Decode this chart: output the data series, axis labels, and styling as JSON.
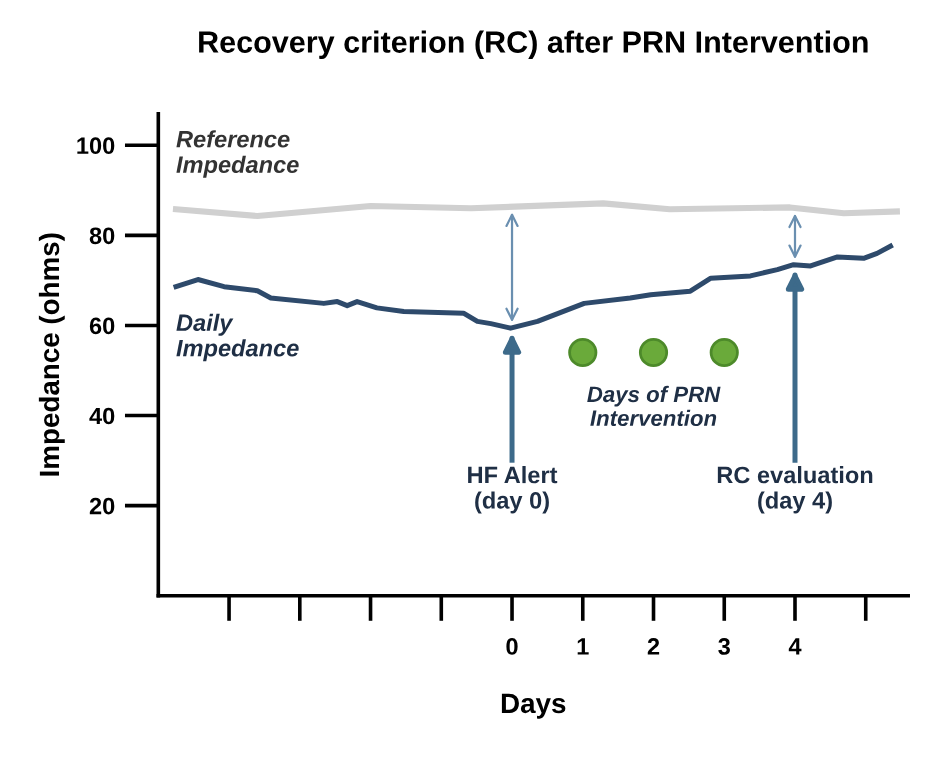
{
  "chart_data": {
    "type": "line",
    "title": "Recovery criterion (RC) after PRN Intervention",
    "xlabel": "Days",
    "ylabel": "Impedance (ohms)",
    "xlim": [
      -5,
      5.6
    ],
    "ylim": [
      0,
      107
    ],
    "xticks": [
      {
        "value": -4,
        "label": null
      },
      {
        "value": -3,
        "label": null
      },
      {
        "value": -2,
        "label": null
      },
      {
        "value": -1,
        "label": null
      },
      0,
      1,
      2,
      3,
      4,
      {
        "value": 5,
        "label": null
      }
    ],
    "yticks": [
      20,
      40,
      60,
      80,
      100
    ],
    "grid": false,
    "legend": false,
    "marker": "none",
    "line_style": "solid",
    "series": [
      {
        "name": "Daily Impedance",
        "color": "#2e4a6b",
        "x": [
          -4.75,
          -4.44,
          -4.07,
          -3.6,
          -3.41,
          -2.66,
          -2.47,
          -2.33,
          -2.19,
          -1.91,
          -1.53,
          -0.68,
          -0.49,
          -0.3,
          -0.02,
          0.36,
          1.02,
          1.67,
          1.96,
          2.52,
          2.81,
          3.37,
          3.75,
          3.98,
          4.22,
          4.6,
          4.97,
          5.16,
          5.35
        ],
        "values": [
          68.6,
          70.2,
          68.6,
          67.7,
          66.1,
          64.9,
          65.3,
          64.4,
          65.3,
          63.9,
          63.1,
          62.7,
          60.9,
          60.4,
          59.4,
          60.9,
          64.9,
          66.1,
          66.8,
          67.6,
          70.5,
          71.0,
          72.4,
          73.5,
          73.2,
          75.2,
          74.9,
          76.0,
          77.6
        ]
      },
      {
        "name": "Reference Impedance",
        "color": "#d0d0d0",
        "x": [
          -4.75,
          -3.6,
          -2.0,
          -0.58,
          1.29,
          2.23,
          3.93,
          4.69,
          5.44
        ],
        "values": [
          85.8,
          84.3,
          86.5,
          86.0,
          87.1,
          85.8,
          86.2,
          84.9,
          85.3
        ]
      },
      {
        "type": "scatter",
        "marker": "circle",
        "color": "#6aaa3a",
        "x": [
          1,
          2,
          3
        ],
        "values": [
          54,
          54,
          54
        ]
      }
    ],
    "ref_lines": [
      {
        "axis": "x",
        "value": 0,
        "label": "HF Alert\n(day 0)"
      },
      {
        "axis": "x",
        "value": 4,
        "label": "RC evaluation\n(day 4)"
      }
    ],
    "annotations": [
      {
        "text": "Days of PRN\nIntervention",
        "x": 2,
        "y": 54
      }
    ]
  }
}
